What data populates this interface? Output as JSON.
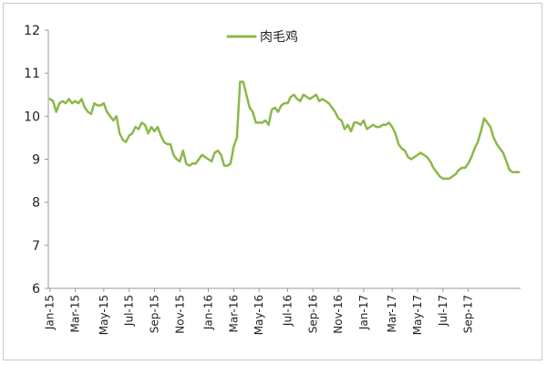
{
  "chart_data": {
    "type": "line",
    "title": "",
    "xlabel": "",
    "ylabel": "",
    "ylim": [
      6,
      12
    ],
    "yticks": [
      6,
      7,
      8,
      9,
      10,
      11,
      12
    ],
    "grid": false,
    "legend_position": "top",
    "x_tick_labels": [
      "Jan-15",
      "Mar-15",
      "May-15",
      "Jul-15",
      "Sep-15",
      "Nov-15",
      "Jan-16",
      "Mar-16",
      "May-16",
      "Jul-16",
      "Sep-16",
      "Nov-16",
      "Jan-17",
      "Mar-17",
      "May-17",
      "Jul-17",
      "Sep-17"
    ],
    "series": [
      {
        "name": "肉毛鸡",
        "color": "#8cb84a",
        "values": [
          10.4,
          10.35,
          10.1,
          10.3,
          10.35,
          10.3,
          10.4,
          10.3,
          10.35,
          10.3,
          10.4,
          10.2,
          10.1,
          10.05,
          10.3,
          10.25,
          10.25,
          10.3,
          10.1,
          10.0,
          9.9,
          10.0,
          9.6,
          9.45,
          9.4,
          9.55,
          9.6,
          9.75,
          9.7,
          9.85,
          9.8,
          9.6,
          9.75,
          9.65,
          9.75,
          9.55,
          9.4,
          9.35,
          9.35,
          9.1,
          9.0,
          8.95,
          9.2,
          8.9,
          8.85,
          8.9,
          8.9,
          9.0,
          9.1,
          9.05,
          9.0,
          8.95,
          9.15,
          9.2,
          9.1,
          8.85,
          8.85,
          8.9,
          9.3,
          9.5,
          10.8,
          10.8,
          10.5,
          10.2,
          10.1,
          9.85,
          9.85,
          9.85,
          9.9,
          9.8,
          10.15,
          10.2,
          10.1,
          10.25,
          10.3,
          10.3,
          10.45,
          10.5,
          10.4,
          10.35,
          10.5,
          10.45,
          10.4,
          10.45,
          10.5,
          10.35,
          10.4,
          10.35,
          10.3,
          10.2,
          10.1,
          9.95,
          9.9,
          9.7,
          9.8,
          9.65,
          9.85,
          9.85,
          9.8,
          9.9,
          9.7,
          9.75,
          9.8,
          9.75,
          9.75,
          9.8,
          9.8,
          9.85,
          9.75,
          9.6,
          9.35,
          9.25,
          9.2,
          9.05,
          9.0,
          9.05,
          9.1,
          9.15,
          9.1,
          9.05,
          8.95,
          8.8,
          8.7,
          8.6,
          8.55,
          8.55,
          8.55,
          8.6,
          8.65,
          8.75,
          8.8,
          8.8,
          8.9,
          9.05,
          9.25,
          9.4,
          9.65,
          9.95,
          9.85,
          9.75,
          9.5,
          9.35,
          9.25,
          9.15,
          8.95,
          8.75,
          8.7,
          8.7,
          8.7
        ]
      }
    ]
  }
}
